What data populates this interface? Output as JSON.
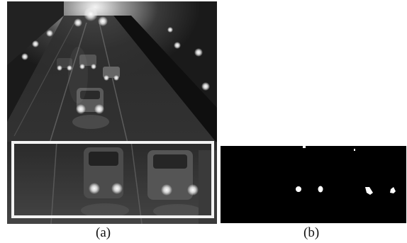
{
  "figure": {
    "panels": [
      {
        "caption": "(a)",
        "content": "night-traffic-grayscale-photo",
        "highlight": "roi-white-rectangle"
      },
      {
        "caption": "(b)",
        "content": "binary-headlight-mask"
      }
    ]
  },
  "colors": {
    "background": "#ffffff",
    "roi_border": "#f2f2f2",
    "mask_background": "#000000",
    "mask_blob": "#ffffff"
  }
}
